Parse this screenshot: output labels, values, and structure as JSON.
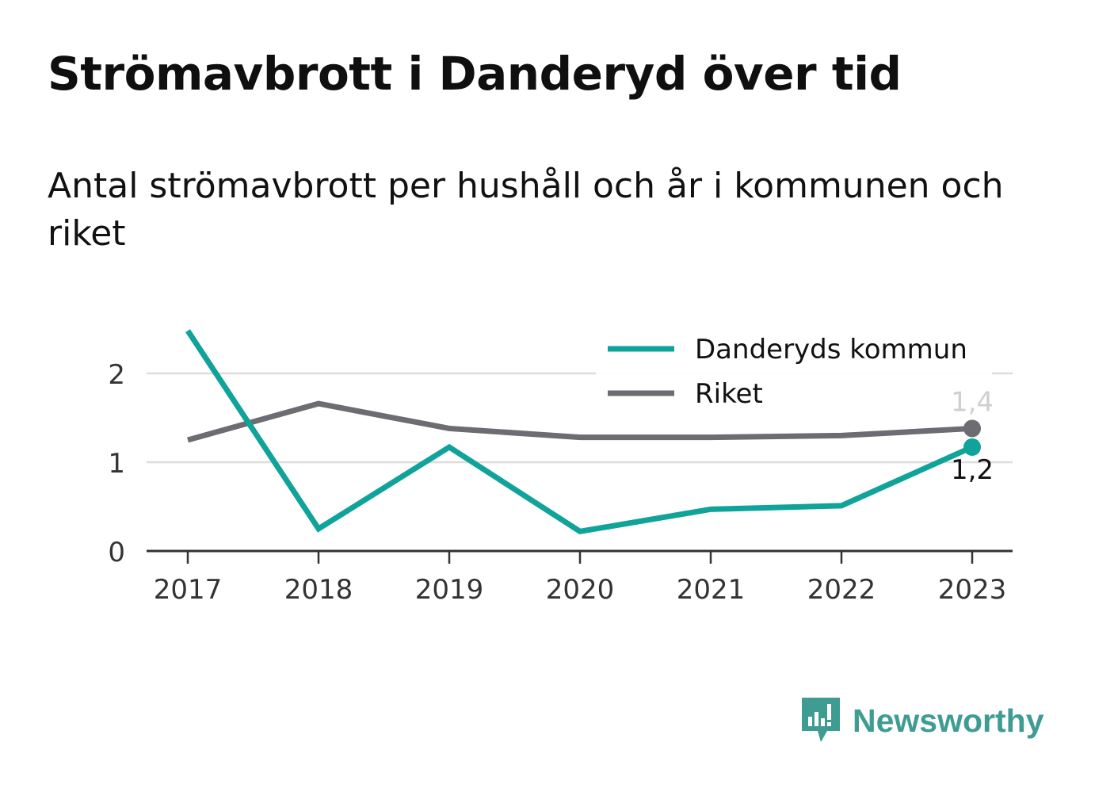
{
  "header": {
    "title": "Strömavbrott i Danderyd över tid",
    "subtitle": "Antal strömavbrott per hushåll och år i kommunen och riket"
  },
  "brand": {
    "name": "Newsworthy",
    "icon": "newsworthy-logo-icon",
    "color": "#3f9c93"
  },
  "chart_data": {
    "type": "line",
    "title": "Strömavbrott i Danderyd över tid",
    "subtitle": "Antal strömavbrott per hushåll och år i kommunen och riket",
    "xlabel": "",
    "ylabel": "",
    "categories": [
      "2017",
      "2018",
      "2019",
      "2020",
      "2021",
      "2022",
      "2023"
    ],
    "ylim": [
      0,
      2.5
    ],
    "yticks": [
      0,
      1,
      2
    ],
    "ytick_labels": [
      "0",
      "1",
      "2"
    ],
    "grid": true,
    "legend_position": "top-right",
    "series": [
      {
        "name": "Danderyds kommun",
        "color": "#0fa39a",
        "values": [
          2.48,
          0.25,
          1.17,
          0.22,
          0.47,
          0.51,
          1.17
        ],
        "end_label": "1,2",
        "end_label_color": "#111111"
      },
      {
        "name": "Riket",
        "color": "#6c6c72",
        "values": [
          1.25,
          1.66,
          1.38,
          1.28,
          1.28,
          1.3,
          1.38
        ],
        "end_label": "1,4",
        "end_label_color": "#cfcfcf"
      }
    ]
  }
}
